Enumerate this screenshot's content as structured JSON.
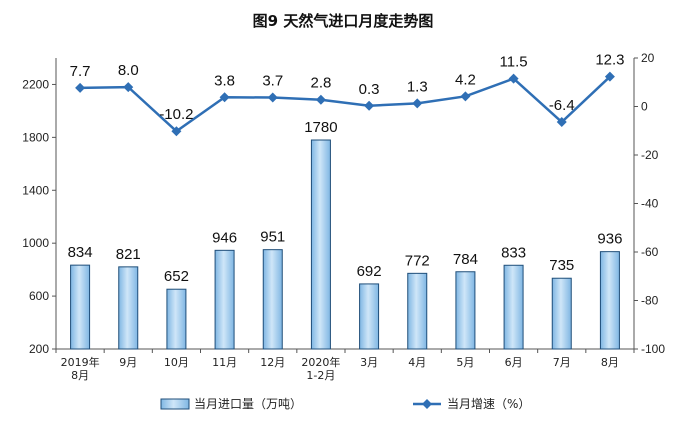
{
  "chart_data": {
    "type": "bar",
    "title": "图9  天然气进口月度走势图",
    "categories": [
      [
        "2019年",
        "8月"
      ],
      [
        "9月"
      ],
      [
        "10月"
      ],
      [
        "11月"
      ],
      [
        "12月"
      ],
      [
        "2020年",
        "1-2月"
      ],
      [
        "3月"
      ],
      [
        "4月"
      ],
      [
        "5月"
      ],
      [
        "6月"
      ],
      [
        "7月"
      ],
      [
        "8月"
      ]
    ],
    "series": [
      {
        "name": "当月进口量（万吨）",
        "type": "bar",
        "axis": "left",
        "values": [
          834,
          821,
          652,
          946,
          951,
          1780,
          692,
          772,
          784,
          833,
          735,
          936
        ],
        "labels": [
          "834",
          "821",
          "652",
          "946",
          "951",
          "1780",
          "692",
          "772",
          "784",
          "833",
          "735",
          "936"
        ]
      },
      {
        "name": "当月增速（%）",
        "type": "line",
        "axis": "right",
        "values": [
          7.7,
          8.0,
          -10.2,
          3.8,
          3.7,
          2.8,
          0.3,
          1.3,
          4.2,
          11.5,
          -6.4,
          12.3
        ],
        "labels": [
          "7.7",
          "8.0",
          "-10.2",
          "3.8",
          "3.7",
          "2.8",
          "0.3",
          "1.3",
          "4.2",
          "11.5",
          "-6.4",
          "12.3"
        ]
      }
    ],
    "y_left": {
      "ticks": [
        200,
        600,
        1000,
        1400,
        1800,
        2200
      ],
      "ylim": [
        200,
        2400
      ]
    },
    "y_right": {
      "ticks": [
        20,
        0,
        -20,
        -40,
        -60,
        -80,
        -100
      ],
      "ylim": [
        -100,
        20
      ]
    },
    "grid": false,
    "legend_position": "bottom",
    "colors": {
      "bar_fill": "#a9d0ee",
      "bar_stroke": "#1f4e79",
      "line": "#2f6fb5"
    }
  }
}
